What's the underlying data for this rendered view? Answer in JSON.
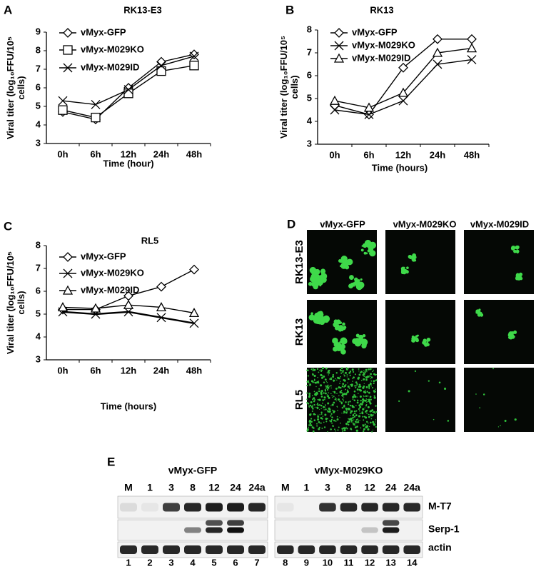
{
  "chart_data": [
    {
      "type": "line",
      "panel": "A",
      "title": "RK13-E3",
      "x_label": "Time (hour)",
      "y_label": "Viral titer (log₁₀FFU/10⁵ cells)",
      "categories": [
        "0h",
        "6h",
        "12h",
        "24h",
        "48h"
      ],
      "ylim": [
        3,
        9
      ],
      "yticks": [
        3,
        4,
        5,
        6,
        7,
        8,
        9
      ],
      "series": [
        {
          "name": "vMyx-GFP",
          "color": "#000000",
          "marker": "diamond",
          "values": [
            4.7,
            4.3,
            6.0,
            7.4,
            7.8
          ]
        },
        {
          "name": "vMyx-M029KO",
          "color": "#000000",
          "marker": "square",
          "values": [
            4.8,
            4.4,
            5.7,
            6.9,
            7.2
          ]
        },
        {
          "name": "vMyx-M029ID",
          "color": "#000000",
          "marker": "x",
          "values": [
            5.3,
            5.1,
            5.9,
            7.2,
            7.7
          ]
        }
      ]
    },
    {
      "type": "line",
      "panel": "B",
      "title": "RK13",
      "x_label": "Time (hours)",
      "y_label": "Viral titer (log₁₀FFU/10⁵ cells)",
      "categories": [
        "0h",
        "6h",
        "12h",
        "24h",
        "48h"
      ],
      "ylim": [
        3,
        8
      ],
      "yticks": [
        3,
        4,
        5,
        6,
        7,
        8
      ],
      "series": [
        {
          "name": "vMyx-GFP",
          "color": "#000000",
          "marker": "diamond",
          "values": [
            4.7,
            4.3,
            6.35,
            7.6,
            7.6
          ]
        },
        {
          "name": "vMyx-M029KO",
          "color": "#000000",
          "marker": "x",
          "values": [
            4.5,
            4.3,
            4.9,
            6.5,
            6.7
          ]
        },
        {
          "name": "vMyx-M029ID",
          "color": "#000000",
          "marker": "triangle",
          "values": [
            4.9,
            4.6,
            5.25,
            7.0,
            7.2
          ]
        }
      ]
    },
    {
      "type": "line",
      "panel": "C",
      "title": "RL5",
      "x_label": "Time (hours)",
      "y_label": "Viral titer (log₁₀FFU/10⁵ cells)",
      "categories": [
        "0h",
        "6h",
        "12h",
        "24h",
        "48h"
      ],
      "ylim": [
        3,
        8
      ],
      "yticks": [
        3,
        4,
        5,
        6,
        7,
        8
      ],
      "series": [
        {
          "name": "vMyx-GFP",
          "color": "#000000",
          "marker": "diamond",
          "values": [
            5.2,
            5.2,
            5.8,
            6.2,
            6.95
          ]
        },
        {
          "name": "vMyx-M029KO",
          "color": "#000000",
          "marker": "x",
          "values": [
            5.1,
            5.0,
            5.1,
            4.85,
            4.6
          ]
        },
        {
          "name": "vMyx-M029ID",
          "color": "#000000",
          "marker": "triangle",
          "values": [
            5.3,
            5.25,
            5.4,
            5.3,
            5.05
          ]
        }
      ]
    }
  ],
  "panel_d": {
    "panel": "D",
    "columns": [
      "vMyx-GFP",
      "vMyx-M029KO",
      "vMyx-M029ID"
    ],
    "rows": [
      "RK13-E3",
      "RK13",
      "RL5"
    ]
  },
  "panel_e": {
    "panel": "E",
    "groups": [
      "vMyx-GFP",
      "vMyx-M029KO"
    ],
    "lanes": [
      [
        "M",
        "1",
        "3",
        "8",
        "12",
        "24",
        "24a"
      ],
      [
        "M",
        "1",
        "3",
        "8",
        "12",
        "24",
        "24a"
      ]
    ],
    "row_labels": [
      "M-T7",
      "Serp-1",
      "actin"
    ],
    "lane_numbers": [
      [
        "1",
        "2",
        "3",
        "4",
        "5",
        "6",
        "7"
      ],
      [
        "8",
        "9",
        "10",
        "11",
        "12",
        "13",
        "14"
      ]
    ]
  }
}
